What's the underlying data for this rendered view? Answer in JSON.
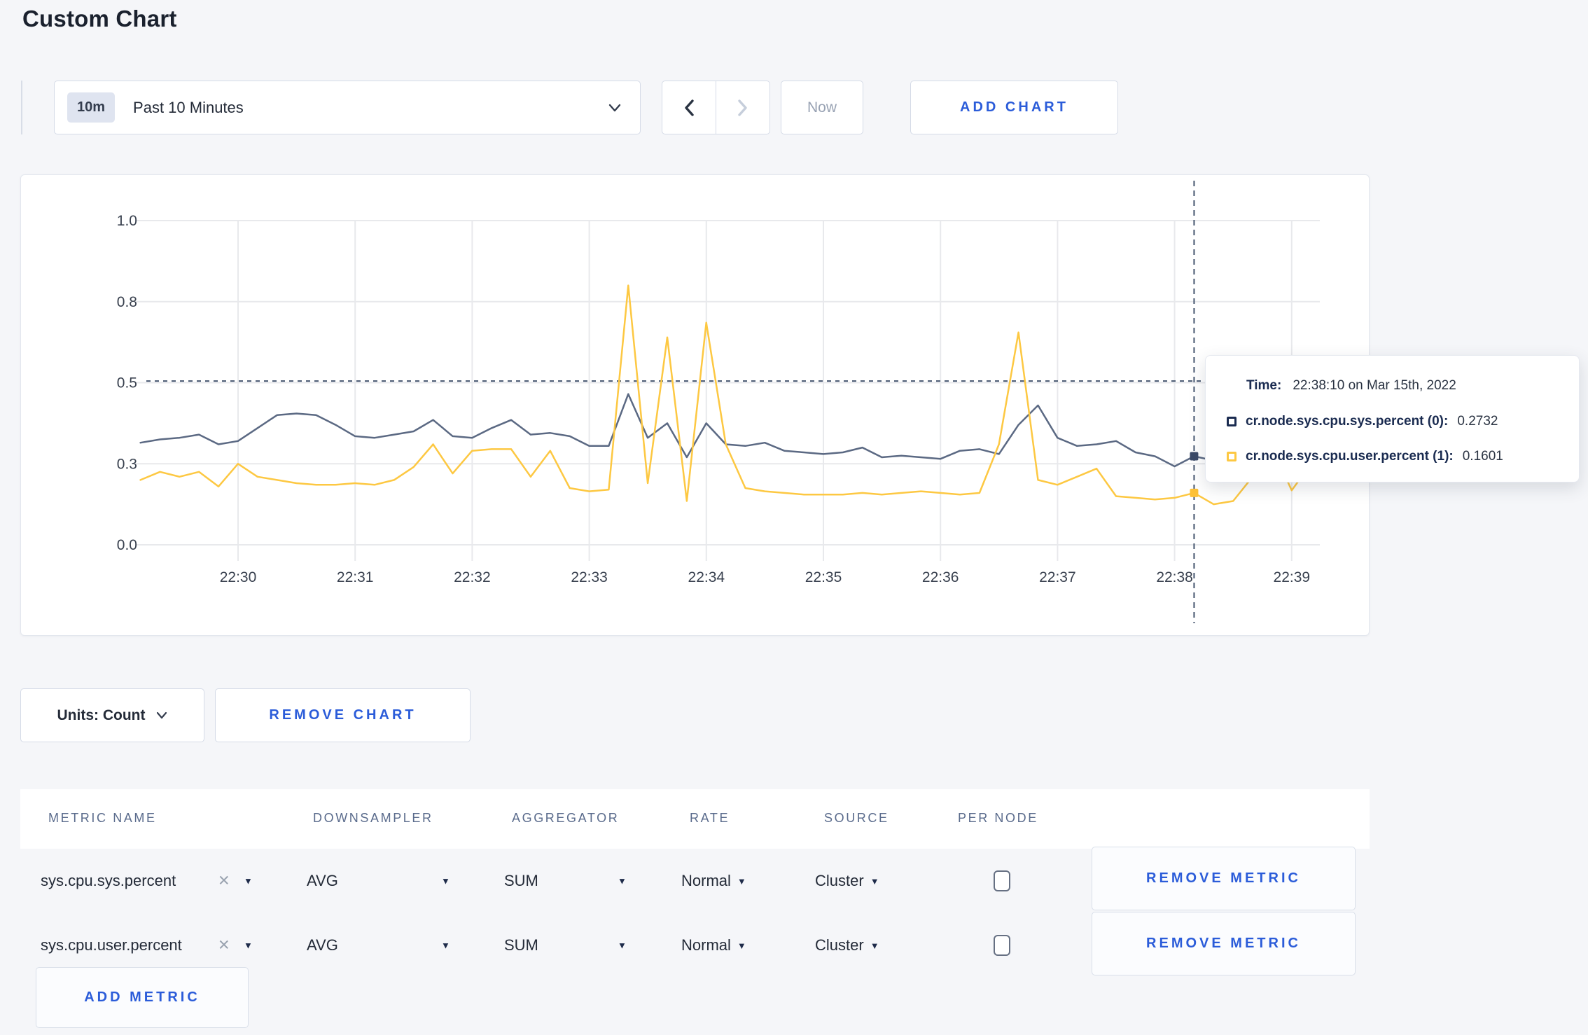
{
  "page": {
    "title": "Custom Chart",
    "background": "#f5f6f9",
    "accent_blue": "#2b5cd9"
  },
  "toolbar": {
    "time_range": {
      "badge": "10m",
      "label": "Past 10 Minutes"
    },
    "now_label": "Now",
    "add_chart_label": "ADD CHART"
  },
  "icons": {
    "caret_down": "▼",
    "close": "✕",
    "chevron_left": "‹",
    "chevron_right": "›",
    "chevron_down": "⌄"
  },
  "chart_data": {
    "type": "line",
    "title": "",
    "xlabel": "",
    "ylabel": "",
    "x_ticks": [
      "22:30",
      "22:31",
      "22:32",
      "22:33",
      "22:34",
      "22:35",
      "22:36",
      "22:37",
      "22:38",
      "22:39"
    ],
    "x_start": "22:29:10",
    "x_interval_seconds": 10,
    "y_axis": {
      "labels": [
        "0.0",
        "0.3",
        "0.5",
        "0.8",
        "1.0"
      ],
      "values": [
        0,
        0.25,
        0.5,
        0.75,
        1.0
      ],
      "range": [
        0,
        1
      ]
    },
    "grid": true,
    "colors": {
      "gridline": "#e8e9ec",
      "axis_text": "#39414f",
      "crosshair": "#46566f"
    },
    "series": [
      {
        "name": "cr.node.sys.cpu.sys.percent (0)",
        "color": "#5b6983",
        "values": [
          0.315,
          0.325,
          0.33,
          0.34,
          0.31,
          0.32,
          0.36,
          0.4,
          0.405,
          0.4,
          0.37,
          0.335,
          0.33,
          0.34,
          0.35,
          0.385,
          0.335,
          0.33,
          0.36,
          0.385,
          0.34,
          0.345,
          0.335,
          0.305,
          0.305,
          0.465,
          0.33,
          0.375,
          0.27,
          0.375,
          0.31,
          0.305,
          0.315,
          0.29,
          0.285,
          0.28,
          0.285,
          0.3,
          0.27,
          0.275,
          0.27,
          0.265,
          0.29,
          0.295,
          0.28,
          0.37,
          0.43,
          0.33,
          0.305,
          0.31,
          0.32,
          0.285,
          0.273,
          0.242,
          0.2732,
          0.26,
          0.26,
          0.315,
          0.285,
          0.295,
          0.305
        ]
      },
      {
        "name": "cr.node.sys.cpu.user.percent (1)",
        "color": "#fdc842",
        "values": [
          0.2,
          0.225,
          0.21,
          0.225,
          0.18,
          0.25,
          0.21,
          0.2,
          0.19,
          0.185,
          0.185,
          0.19,
          0.185,
          0.2,
          0.24,
          0.31,
          0.22,
          0.29,
          0.295,
          0.295,
          0.21,
          0.29,
          0.175,
          0.165,
          0.17,
          0.8,
          0.19,
          0.64,
          0.135,
          0.685,
          0.31,
          0.175,
          0.165,
          0.16,
          0.155,
          0.155,
          0.155,
          0.16,
          0.155,
          0.16,
          0.165,
          0.16,
          0.155,
          0.16,
          0.31,
          0.655,
          0.2,
          0.185,
          0.21,
          0.235,
          0.15,
          0.145,
          0.14,
          0.145,
          0.1601,
          0.125,
          0.135,
          0.21,
          0.3,
          0.168,
          0.25
        ]
      }
    ],
    "crosshair": {
      "time": "22:38:10",
      "x_index": 54,
      "h_line_value": 0.505,
      "dot_values": [
        0.2732,
        0.1601
      ]
    },
    "tooltip": {
      "time_label": "Time:",
      "time_value": "22:38:10 on Mar 15th, 2022",
      "rows": [
        {
          "label": "cr.node.sys.cpu.sys.percent (0):",
          "value": "0.2732"
        },
        {
          "label": "cr.node.sys.cpu.user.percent (1):",
          "value": "0.1601"
        }
      ]
    },
    "legend_position": "tooltip"
  },
  "chart_controls": {
    "units_label": "Units: Count",
    "remove_chart_label": "REMOVE CHART"
  },
  "metrics_table": {
    "headers": [
      "METRIC NAME",
      "DOWNSAMPLER",
      "AGGREGATOR",
      "RATE",
      "SOURCE",
      "PER NODE"
    ],
    "rows": [
      {
        "metric": "sys.cpu.sys.percent",
        "downsampler": "AVG",
        "aggregator": "SUM",
        "rate": "Normal",
        "source": "Cluster",
        "per_node_checked": false
      },
      {
        "metric": "sys.cpu.user.percent",
        "downsampler": "AVG",
        "aggregator": "SUM",
        "rate": "Normal",
        "source": "Cluster",
        "per_node_checked": false
      }
    ],
    "remove_metric_label": "REMOVE METRIC",
    "add_metric_label": "ADD METRIC"
  }
}
